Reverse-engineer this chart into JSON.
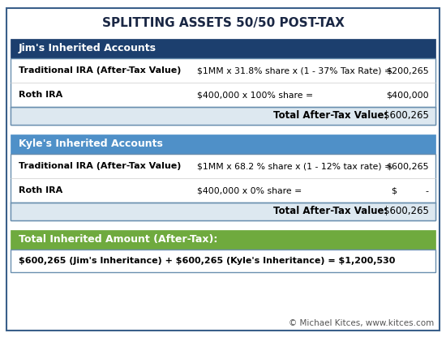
{
  "title": "SPLITTING ASSETS 50/50 POST-TAX",
  "title_fontsize": 11,
  "background_color": "#ffffff",
  "jim_header": "Jim's Inherited Accounts",
  "jim_header_bg": "#1c3f6e",
  "jim_header_color": "#ffffff",
  "jim_row1_label": "Traditional IRA (After-Tax Value)",
  "jim_row1_formula": "$1MM x 31.8% share x (1 - 37% Tax Rate) =",
  "jim_row1_value": "$200,265",
  "jim_row2_label": "Roth IRA",
  "jim_row2_formula": "$400,000 x 100% share =",
  "jim_row2_value": "$400,000",
  "jim_total_label": "Total After-Tax Value:",
  "jim_total_value": "$600,265",
  "jim_total_bg": "#dde8f0",
  "kyle_header": "Kyle's Inherited Accounts",
  "kyle_header_bg": "#4f90c8",
  "kyle_header_color": "#ffffff",
  "kyle_row1_label": "Traditional IRA (After-Tax Value)",
  "kyle_row1_formula": "$1MM x 68.2 % share x (1 - 12% tax rate) =",
  "kyle_row1_value": "$600,265",
  "kyle_row2_label": "Roth IRA",
  "kyle_row2_formula": "$400,000 x 0% share =",
  "kyle_row2_value": "$          -",
  "kyle_total_label": "Total After-Tax Value:",
  "kyle_total_value": "$600,265",
  "kyle_total_bg": "#dde8f0",
  "total_header": "Total Inherited Amount (After-Tax):",
  "total_header_bg": "#6faa3e",
  "total_header_color": "#ffffff",
  "total_body": "$600,265 (Jim's Inheritance) + $600,265 (Kyle's Inheritance) = $1,200,530",
  "total_body_bg": "#ffffff",
  "footer": "© Michael Kitces, www.kitces.com",
  "footer_link": "www.kitces.com",
  "footer_color": "#555555",
  "footer_link_color": "#1155cc",
  "footer_fontsize": 7.5,
  "outer_border_color": "#3a5f8a",
  "outer_border_lw": 1.5
}
